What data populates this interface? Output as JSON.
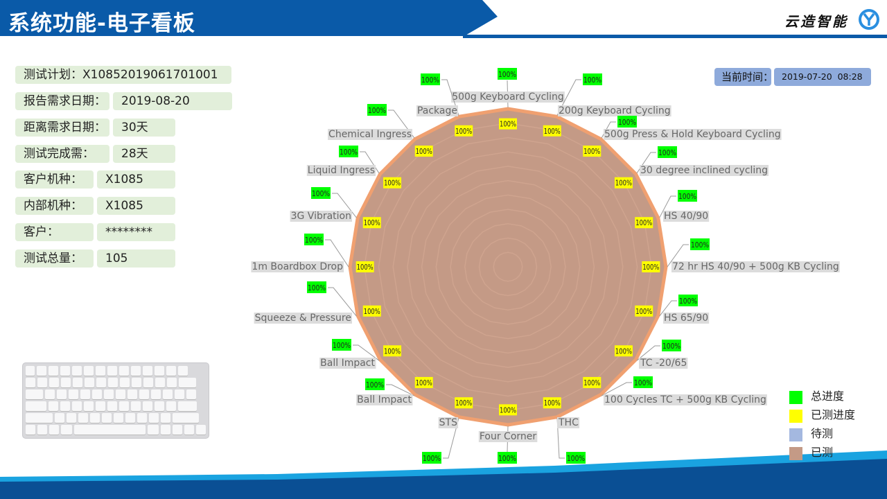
{
  "header": {
    "title": "系统功能-电子看板",
    "brand": "云造智能",
    "brand_logo_letters": "YR",
    "color": "#0a5aa8"
  },
  "info": [
    {
      "label": "测试计划：",
      "value": "X10852019061701001"
    },
    {
      "label": "报告需求日期：",
      "value": "2019-08-20"
    },
    {
      "label": "距离需求日期：",
      "value": "30天"
    },
    {
      "label": "测试完成需：",
      "value": "28天"
    },
    {
      "label": "客户机种：",
      "value": "X1085"
    },
    {
      "label": "内部机种：",
      "value": "X1085"
    },
    {
      "label": "客户：",
      "value": "********"
    },
    {
      "label": "测试总量：",
      "value": "105"
    }
  ],
  "time": {
    "label": "当前时间：",
    "value": "2019-07-20  08:28"
  },
  "legend": [
    {
      "label": "总进度",
      "color": "#00ff00"
    },
    {
      "label": "已测进度",
      "color": "#ffff00"
    },
    {
      "label": "待测",
      "color": "#a4b8e0"
    },
    {
      "label": "已测",
      "color": "#c49a86"
    }
  ],
  "chart_data": {
    "type": "radar",
    "categories": [
      "500g Keyboard Cycling",
      "200g Keyboard Cycling",
      "500g Press & Hold Keyboard Cycling",
      "30 degree inclined cycling",
      "HS 40/90",
      "72 hr HS 40/90 + 500g KB Cycling",
      "HS 65/90",
      "TC -20/65",
      "100 Cycles TC + 500g KB Cycling",
      "THC",
      "Four Corner",
      "STS",
      "Ball Impact",
      "Ball Impact",
      "Squeeze & Pressure",
      "1m Boardbox Drop",
      "3G Vibration",
      "Liquid Ingress",
      "Chemical Ingress",
      "Package"
    ],
    "series": [
      {
        "name": "总进度",
        "values": [
          100,
          100,
          100,
          100,
          100,
          100,
          100,
          100,
          100,
          100,
          100,
          100,
          100,
          100,
          100,
          100,
          100,
          100,
          100,
          100
        ],
        "labels": [
          "100%",
          "100%",
          "100%",
          "100%",
          "100%",
          "100%",
          "100%",
          "100%",
          "100%",
          "100%",
          "100%",
          "100%",
          "100%",
          "100%",
          "100%",
          "100%",
          "100%",
          "100%",
          "100%",
          "100%"
        ]
      },
      {
        "name": "已测进度",
        "values": [
          100,
          100,
          100,
          100,
          100,
          100,
          100,
          100,
          100,
          100,
          100,
          100,
          100,
          100,
          100,
          100,
          100,
          100,
          100,
          100
        ],
        "labels": [
          "100%",
          "100%",
          "100%",
          "100%",
          "100%",
          "100%",
          "100%",
          "100%",
          "100%",
          "100%",
          "100%",
          "100%",
          "100%",
          "100%",
          "100%",
          "100%",
          "100%",
          "100%",
          "100%",
          "100%"
        ]
      }
    ],
    "range": [
      0,
      100
    ],
    "fill_color": "#c49a86",
    "edge_color": "#f0a070"
  }
}
